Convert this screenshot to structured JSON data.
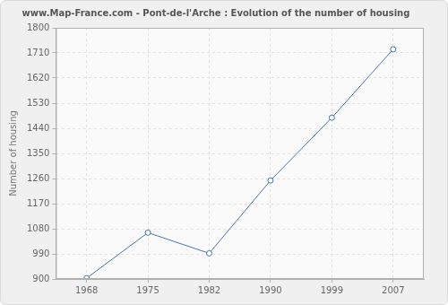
{
  "chart_data": {
    "type": "line",
    "title": "www.Map-France.com - Pont-de-l'Arche : Evolution of the number of housing",
    "y_label": "Number of housing",
    "categories": [
      "1968",
      "1975",
      "1982",
      "1990",
      "1999",
      "2007"
    ],
    "values": [
      903,
      1066,
      992,
      1253,
      1478,
      1723
    ],
    "color": "#4a76a8",
    "marker": "circle",
    "ylim": [
      900,
      1800
    ],
    "yticks": [
      900,
      990,
      1080,
      1170,
      1260,
      1350,
      1440,
      1530,
      1620,
      1710,
      1800
    ],
    "grid": true
  }
}
